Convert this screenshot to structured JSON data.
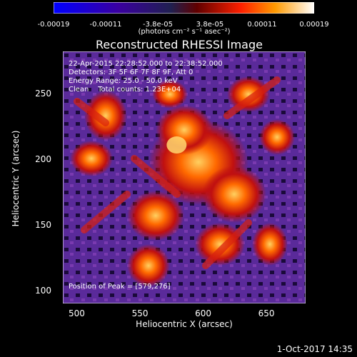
{
  "colorbar": {
    "ticks": [
      "-0.00019",
      "-0.00011",
      "-3.8e-05",
      "3.8e-05",
      "0.00011",
      "0.00019"
    ],
    "units": "(photons cm⁻² s⁻¹ asec⁻²)"
  },
  "info": {
    "time_range": "22-Apr-2015 22:28:52.000 to 22:38:52.000",
    "detectors": "Detectors: 3F 5F 6F 7F 8F 9F, Att 0",
    "energy": "Energy Range: 25.0 - 50.0 keV",
    "method": "Clean    Total counts: 1.23E+04",
    "peak": "Position of Peak = [579,276]"
  },
  "timestamp": "1-Oct-2017 14:35",
  "chart_data": {
    "type": "heatmap",
    "title": "Reconstructed RHESSI Image",
    "xlabel": "Heliocentric X (arcsec)",
    "ylabel": "Heliocentric Y (arcsec)",
    "xlim": [
      489,
      681
    ],
    "ylim": [
      90,
      282
    ],
    "xticks": [
      "500",
      "550",
      "600",
      "650"
    ],
    "yticks": [
      "100",
      "150",
      "200",
      "250"
    ],
    "colorscale": [
      "#0000ff",
      "#2a0055",
      "#5a1aa6",
      "#8a2a6a",
      "#c0101a",
      "#ff5a00",
      "#ffc000",
      "#ffffff"
    ],
    "peak": [
      579,
      276
    ]
  }
}
